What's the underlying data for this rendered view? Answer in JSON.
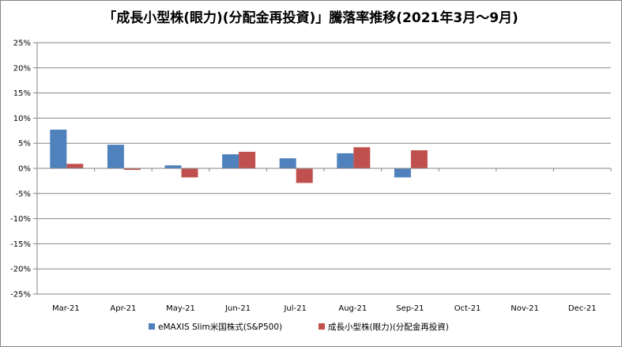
{
  "chart_data": {
    "type": "bar",
    "title": "「成長小型株(眼力)(分配金再投資)」騰落率推移(2021年3月～9月)",
    "categories": [
      "Mar-21",
      "Apr-21",
      "May-21",
      "Jun-21",
      "Jul-21",
      "Aug-21",
      "Sep-21",
      "Oct-21",
      "Nov-21",
      "Dec-21"
    ],
    "y_ticks": [
      "25%",
      "20%",
      "15%",
      "10%",
      "5%",
      "0%",
      "-5%",
      "-10%",
      "-15%",
      "-20%",
      "-25%"
    ],
    "ylim": [
      -25,
      25
    ],
    "grid": true,
    "legend_position": "bottom",
    "series": [
      {
        "name": "eMAXIS Slim米国株式(S&P500)",
        "color": "#4F81BD",
        "values": [
          7.7,
          4.7,
          0.6,
          2.8,
          2.0,
          3.0,
          -1.8,
          null,
          null,
          null
        ]
      },
      {
        "name": "成長小型株(眼力)(分配金再投資)",
        "color": "#C0504D",
        "values": [
          0.9,
          -0.3,
          -1.8,
          3.3,
          -2.9,
          4.2,
          3.6,
          null,
          null,
          null
        ]
      }
    ]
  }
}
